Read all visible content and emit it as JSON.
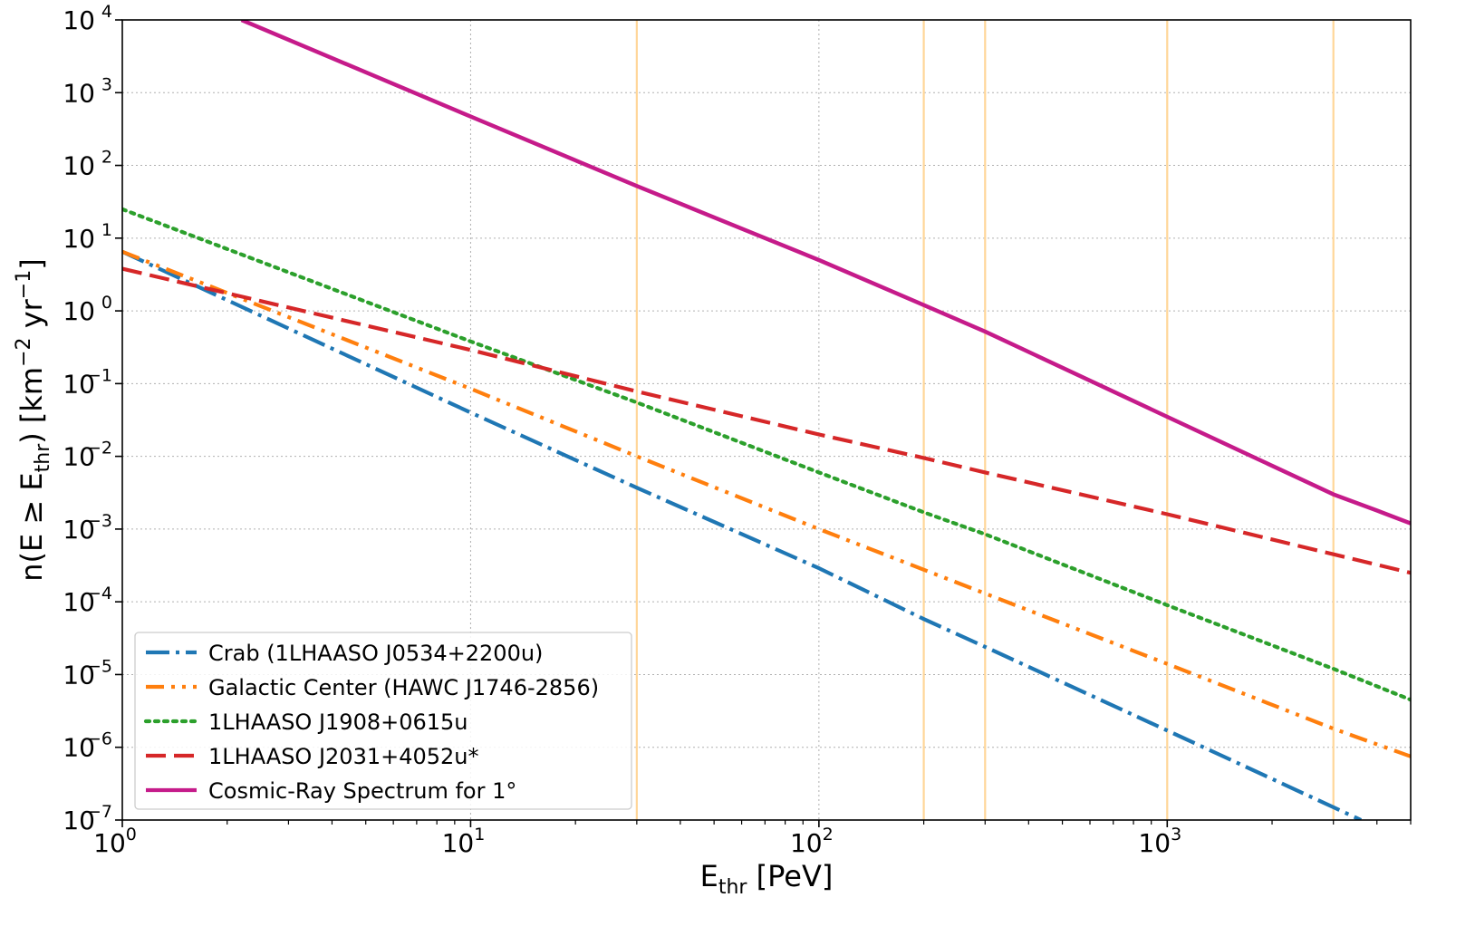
{
  "chart_data": {
    "type": "line",
    "x_scale": "log",
    "y_scale": "log",
    "xlabel": {
      "base": "E",
      "sub": "thr",
      "rest": " [PeV]"
    },
    "ylabel": {
      "prefix": "n(E ≥ E",
      "sub": "thr",
      "mid": ") [km",
      "sup1": "−2",
      "mid2": " yr",
      "sup2": "−1",
      "suffix": "]"
    },
    "xlim": [
      1,
      5000
    ],
    "ylim": [
      1e-07,
      10000
    ],
    "x_ticks": [
      {
        "value": 1,
        "base": "10",
        "exp": "0"
      },
      {
        "value": 10,
        "base": "10",
        "exp": "1"
      },
      {
        "value": 100,
        "base": "10",
        "exp": "2"
      },
      {
        "value": 1000,
        "base": "10",
        "exp": "3"
      }
    ],
    "y_ticks": [
      {
        "value": 1e-07,
        "base": "10",
        "exp": "−7"
      },
      {
        "value": 1e-06,
        "base": "10",
        "exp": "−6"
      },
      {
        "value": 1e-05,
        "base": "10",
        "exp": "−5"
      },
      {
        "value": 0.0001,
        "base": "10",
        "exp": "−4"
      },
      {
        "value": 0.001,
        "base": "10",
        "exp": "−3"
      },
      {
        "value": 0.01,
        "base": "10",
        "exp": "−2"
      },
      {
        "value": 0.1,
        "base": "10",
        "exp": "−1"
      },
      {
        "value": 1,
        "base": "10",
        "exp": "0"
      },
      {
        "value": 10,
        "base": "10",
        "exp": "1"
      },
      {
        "value": 100,
        "base": "10",
        "exp": "2"
      },
      {
        "value": 1000,
        "base": "10",
        "exp": "3"
      },
      {
        "value": 10000,
        "base": "10",
        "exp": "4"
      }
    ],
    "grid": true,
    "vertical_lines": {
      "color": "#ffd699",
      "x": [
        30,
        200,
        300,
        1000,
        3000
      ]
    },
    "legend_position": "lower-left",
    "series": [
      {
        "name": "Crab (1LHAASO J0534+2200u)",
        "color": "#1f77b4",
        "style": "dashdot",
        "points": [
          [
            1,
            6.5
          ],
          [
            10,
            0.04
          ],
          [
            30,
            0.0037
          ],
          [
            100,
            0.00029
          ],
          [
            200,
            5.8e-05
          ],
          [
            300,
            2.4e-05
          ],
          [
            1000,
            1.7e-06
          ],
          [
            3000,
            1.5e-07
          ],
          [
            3600,
            1e-07
          ]
        ]
      },
      {
        "name": "Galactic Center (HAWC J1746-2856)",
        "color": "#ff7f0e",
        "style": "dashdotdot",
        "points": [
          [
            1,
            6.5
          ],
          [
            10,
            0.085
          ],
          [
            30,
            0.01
          ],
          [
            100,
            0.001
          ],
          [
            300,
            0.00013
          ],
          [
            1000,
            1.4e-05
          ],
          [
            3000,
            1.8e-06
          ],
          [
            5000,
            7.5e-07
          ]
        ]
      },
      {
        "name": "1LHAASO J1908+0615u",
        "color": "#2ca02c",
        "style": "dotted",
        "points": [
          [
            1,
            25
          ],
          [
            10,
            0.38
          ],
          [
            30,
            0.055
          ],
          [
            100,
            0.006
          ],
          [
            200,
            0.0017
          ],
          [
            300,
            0.00085
          ],
          [
            1000,
            9e-05
          ],
          [
            3000,
            1.2e-05
          ],
          [
            5000,
            4.5e-06
          ]
        ]
      },
      {
        "name": "1LHAASO J2031+4052u*",
        "color": "#d62728",
        "style": "dashed",
        "points": [
          [
            1,
            3.8
          ],
          [
            10,
            0.29
          ],
          [
            30,
            0.078
          ],
          [
            100,
            0.02
          ],
          [
            200,
            0.0095
          ],
          [
            300,
            0.006
          ],
          [
            1000,
            0.0016
          ],
          [
            3000,
            0.00045
          ],
          [
            5000,
            0.00025
          ]
        ]
      },
      {
        "name": "Cosmic-Ray Spectrum for 1°",
        "color": "#c51b8a",
        "style": "solid",
        "points": [
          [
            2.2,
            10000
          ],
          [
            10,
            470
          ],
          [
            30,
            52
          ],
          [
            100,
            5.0
          ],
          [
            200,
            1.2
          ],
          [
            300,
            0.52
          ],
          [
            1000,
            0.035
          ],
          [
            3000,
            0.003
          ],
          [
            4000,
            0.0018
          ],
          [
            5000,
            0.0012
          ]
        ]
      }
    ]
  }
}
